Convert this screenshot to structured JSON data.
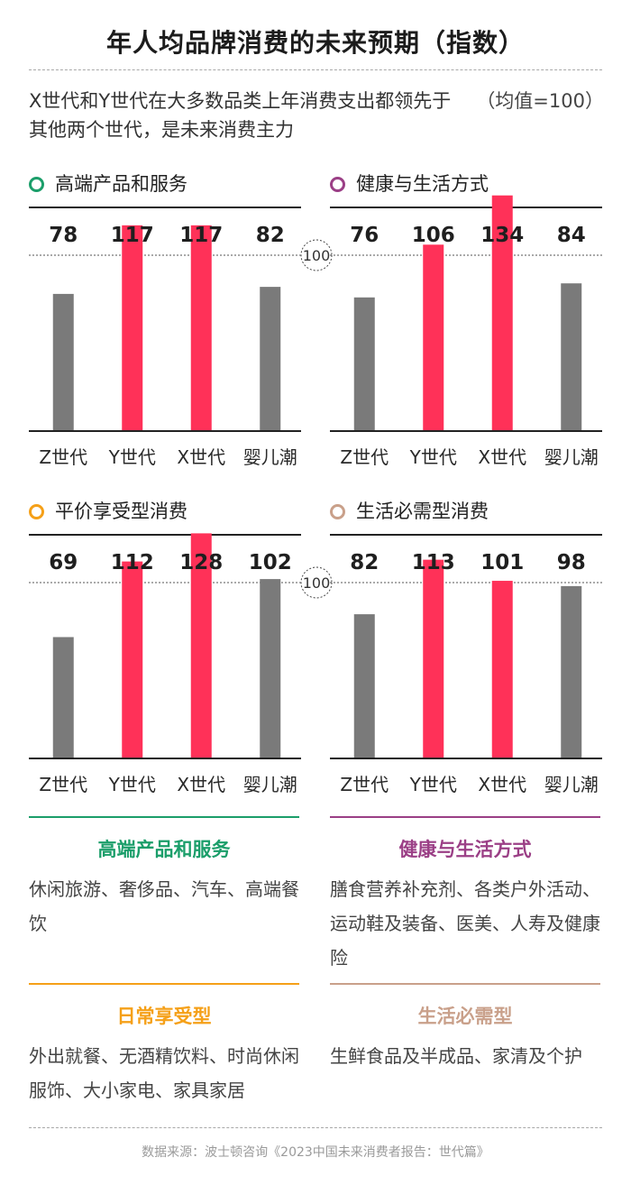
{
  "title": "年人均品牌消费的未来预期（指数）",
  "subtitle": "X世代和Y世代在大多数品类上年消费支出都领先于其他两个世代，是未来消费主力",
  "unit_note": "（均值=100）",
  "baseline_label": "100",
  "colors": {
    "bar_default": "#7a7a7a",
    "bar_highlight": "#ff3158",
    "green": "#1b9e6a",
    "purple": "#9b3f86",
    "orange": "#f5a018",
    "tan": "#c9a08a"
  },
  "chart_data": [
    {
      "type": "bar",
      "title": "高端产品和服务",
      "title_icon": "ring-icon",
      "color": "#1b9e6a",
      "categories": [
        "Z世代",
        "Y世代",
        "X世代",
        "婴儿潮"
      ],
      "values": [
        78,
        117,
        117,
        82
      ],
      "highlight": [
        false,
        true,
        true,
        false
      ],
      "reference_line": 100,
      "ylim": [
        0,
        140
      ]
    },
    {
      "type": "bar",
      "title": "健康与生活方式",
      "title_icon": "ring-icon",
      "color": "#9b3f86",
      "categories": [
        "Z世代",
        "Y世代",
        "X世代",
        "婴儿潮"
      ],
      "values": [
        76,
        106,
        134,
        84
      ],
      "highlight": [
        false,
        true,
        true,
        false
      ],
      "reference_line": 100,
      "ylim": [
        0,
        140
      ]
    },
    {
      "type": "bar",
      "title": "平价享受型消费",
      "title_icon": "ring-icon",
      "color": "#f5a018",
      "categories": [
        "Z世代",
        "Y世代",
        "X世代",
        "婴儿潮"
      ],
      "values": [
        69,
        112,
        128,
        102
      ],
      "highlight": [
        false,
        true,
        true,
        false
      ],
      "reference_line": 100,
      "ylim": [
        0,
        140
      ]
    },
    {
      "type": "bar",
      "title": "生活必需型消费",
      "title_icon": "ring-icon",
      "color": "#c9a08a",
      "categories": [
        "Z世代",
        "Y世代",
        "X世代",
        "婴儿潮"
      ],
      "values": [
        82,
        113,
        101,
        98
      ],
      "highlight": [
        false,
        true,
        true,
        false
      ],
      "reference_line": 100,
      "ylim": [
        0,
        140
      ]
    }
  ],
  "descriptions": [
    {
      "heading": "高端产品和服务",
      "body": "休闲旅游、奢侈品、汽车、高端餐饮",
      "color": "#1b9e6a"
    },
    {
      "heading": "健康与生活方式",
      "body": "膳食营养补充剂、各类户外活动、运动鞋及装备、医美、人寿及健康险",
      "color": "#9b3f86"
    },
    {
      "heading": "日常享受型",
      "body": "外出就餐、无酒精饮料、时尚休闲服饰、大小家电、家具家居",
      "color": "#f5a018"
    },
    {
      "heading": "生活必需型",
      "body": "生鲜食品及半成品、家清及个护",
      "color": "#c9a08a"
    }
  ],
  "source": "数据来源：波士顿咨询《2023中国未来消费者报告：世代篇》"
}
